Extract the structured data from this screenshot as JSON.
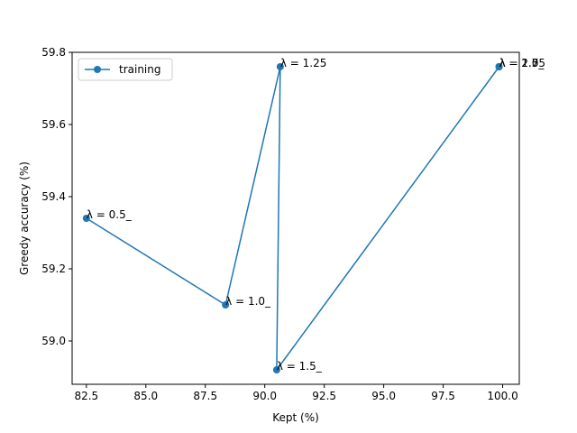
{
  "chart_data": {
    "type": "line",
    "xlabel": "Kept (%)",
    "ylabel": "Greedy accuracy (%)",
    "xlim": [
      81.9,
      100.7
    ],
    "ylim": [
      58.88,
      59.8
    ],
    "xticks": [
      82.5,
      85.0,
      87.5,
      90.0,
      92.5,
      95.0,
      97.5,
      100.0
    ],
    "xtick_labels": [
      "82.5",
      "85.0",
      "87.5",
      "90.0",
      "92.5",
      "95.0",
      "97.5",
      "100.0"
    ],
    "yticks": [
      59.0,
      59.2,
      59.4,
      59.6,
      59.8
    ],
    "ytick_labels": [
      "59.0",
      "59.2",
      "59.4",
      "59.6",
      "59.8"
    ],
    "grid": false,
    "legend_position": "top-left",
    "series": [
      {
        "name": "training",
        "color": "#1f77b4",
        "marker": "circle",
        "points": [
          {
            "x": 82.5,
            "y": 59.34
          },
          {
            "x": 88.35,
            "y": 59.1
          },
          {
            "x": 90.65,
            "y": 59.76
          },
          {
            "x": 90.5,
            "y": 58.92
          },
          {
            "x": 99.85,
            "y": 59.76
          },
          {
            "x": 99.85,
            "y": 59.76
          },
          {
            "x": 99.85,
            "y": 59.76
          }
        ]
      }
    ],
    "annotations": [
      {
        "text": "λ = 0.5_",
        "x": 82.5,
        "y": 59.34
      },
      {
        "text": "λ = 1.0_",
        "x": 88.35,
        "y": 59.1
      },
      {
        "text": "λ = 1.25",
        "x": 90.65,
        "y": 59.76
      },
      {
        "text": "λ = 1.5_",
        "x": 90.5,
        "y": 58.92
      },
      {
        "text": "λ = 1.75",
        "x": 99.85,
        "y": 59.76
      },
      {
        "text": "λ = 2.0_",
        "x": 99.85,
        "y": 59.76
      },
      {
        "text": "λ = 2.5",
        "x": 99.85,
        "y": 59.76
      }
    ]
  }
}
